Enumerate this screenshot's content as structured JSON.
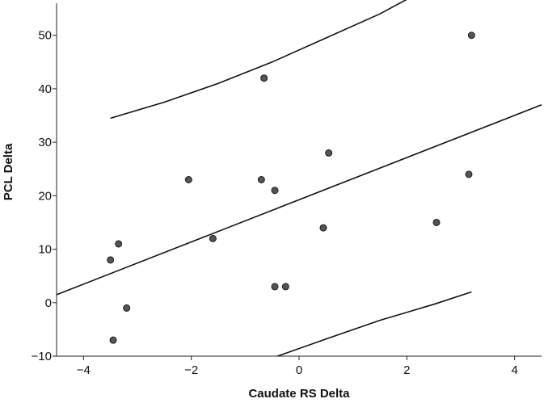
{
  "chart_data": {
    "type": "scatter",
    "xlabel": "Caudate RS Delta",
    "ylabel": "PCL Delta",
    "xlim": [
      -4.5,
      4.5
    ],
    "ylim": [
      -10,
      56
    ],
    "xticks": [
      -4,
      -2,
      0,
      2,
      4
    ],
    "yticks": [
      -10,
      0,
      10,
      20,
      30,
      40,
      50
    ],
    "grid": false,
    "points": [
      {
        "x": -3.5,
        "y": 8
      },
      {
        "x": -3.35,
        "y": 11
      },
      {
        "x": -3.45,
        "y": -7
      },
      {
        "x": -3.2,
        "y": -1
      },
      {
        "x": -2.05,
        "y": 23
      },
      {
        "x": -1.6,
        "y": 12
      },
      {
        "x": -0.65,
        "y": 42
      },
      {
        "x": -0.7,
        "y": 23
      },
      {
        "x": -0.45,
        "y": 21
      },
      {
        "x": -0.45,
        "y": 3
      },
      {
        "x": -0.25,
        "y": 3
      },
      {
        "x": 0.45,
        "y": 14
      },
      {
        "x": 0.55,
        "y": 28
      },
      {
        "x": 2.55,
        "y": 15
      },
      {
        "x": 3.15,
        "y": 24
      },
      {
        "x": 3.2,
        "y": 50
      }
    ],
    "fit_line": {
      "x": [
        -4.5,
        4.5
      ],
      "y": [
        1.5,
        37
      ]
    },
    "upper_band": {
      "x": [
        -3.5,
        -2.5,
        -1.5,
        -0.5,
        0.5,
        1.5,
        2.05
      ],
      "y": [
        34.5,
        37.5,
        41,
        45,
        49.5,
        54,
        57
      ]
    },
    "lower_band": {
      "x": [
        -0.4,
        0.5,
        1.5,
        2.5,
        3.2
      ],
      "y": [
        -10,
        -6.8,
        -3.3,
        -0.3,
        2
      ]
    }
  }
}
